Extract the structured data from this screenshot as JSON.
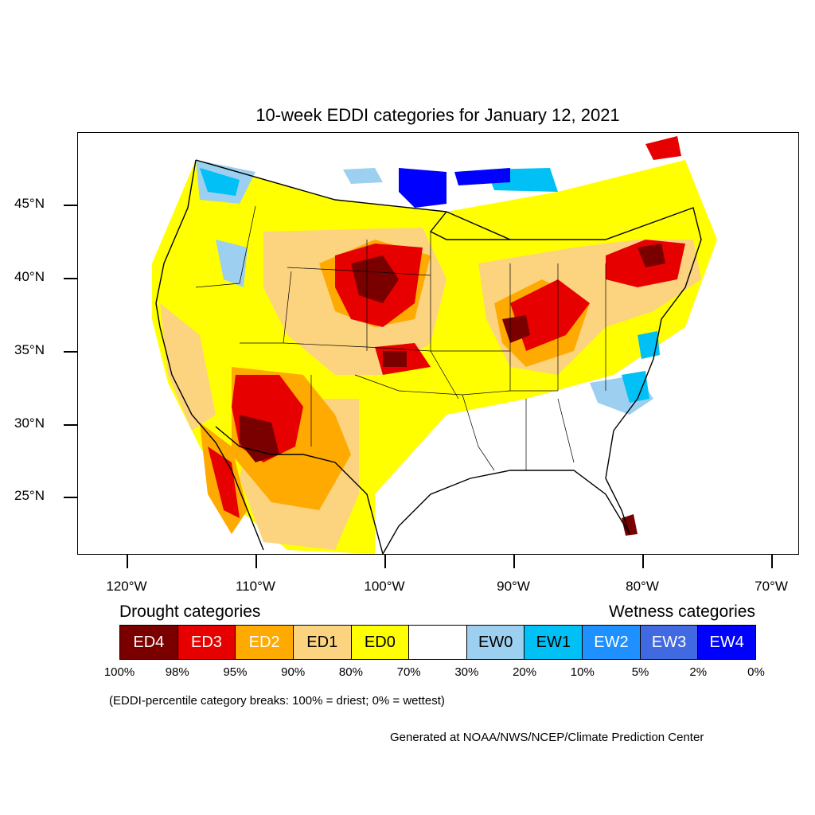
{
  "title": "10-week EDDI categories for January 12, 2021",
  "map": {
    "lat_labels": [
      "45°N",
      "40°N",
      "35°N",
      "30°N",
      "25°N"
    ],
    "lat_values": [
      45,
      40,
      35,
      30,
      25
    ],
    "lon_labels": [
      "120°W",
      "110°W",
      "100°W",
      "90°W",
      "80°W",
      "70°W"
    ],
    "lon_values": [
      -120,
      -110,
      -100,
      -90,
      -80,
      -70
    ],
    "regions": [
      {
        "category": "ED0",
        "area": "Western interior and Great Plains"
      },
      {
        "category": "ED1",
        "area": "Colorado Plateau and northern plains"
      },
      {
        "category": "ED2",
        "area": "Southwest and Texas panhandle"
      },
      {
        "category": "ED3",
        "area": "Arizona, Nebraska, Great Lakes, New York"
      },
      {
        "category": "ED4",
        "area": "Southern Arizona, South Dakota, Indiana, southern Florida"
      },
      {
        "category": "EW0",
        "area": "Pacific Northwest, Carolinas"
      },
      {
        "category": "EW1",
        "area": "Northern border, Virginia coast"
      },
      {
        "category": "EW4",
        "area": "Minnesota / Lake Superior border"
      }
    ]
  },
  "legend": {
    "drought_heading": "Drought categories",
    "wetness_heading": "Wetness categories",
    "categories": [
      {
        "label": "ED4",
        "color": "#7a0000",
        "text_color": "#ffffff"
      },
      {
        "label": "ED3",
        "color": "#e60000",
        "text_color": "#ffffff"
      },
      {
        "label": "ED2",
        "color": "#ffaa00",
        "text_color": "#ffffff"
      },
      {
        "label": "ED1",
        "color": "#fcd37f",
        "text_color": "#000000"
      },
      {
        "label": "ED0",
        "color": "#ffff00",
        "text_color": "#000000"
      },
      {
        "label": "",
        "color": "#ffffff",
        "text_color": "#000000"
      },
      {
        "label": "EW0",
        "color": "#9ccff0",
        "text_color": "#000000"
      },
      {
        "label": "EW1",
        "color": "#00c0f5",
        "text_color": "#000000"
      },
      {
        "label": "EW2",
        "color": "#1e90ff",
        "text_color": "#ffffff"
      },
      {
        "label": "EW3",
        "color": "#4169e1",
        "text_color": "#ffffff"
      },
      {
        "label": "EW4",
        "color": "#0000ff",
        "text_color": "#ffffff"
      }
    ],
    "percentiles": [
      "100%",
      "98%",
      "95%",
      "90%",
      "80%",
      "70%",
      "30%",
      "20%",
      "10%",
      "5%",
      "2%",
      "0%"
    ]
  },
  "note": "(EDDI-percentile category breaks: 100% = driest; 0% = wettest)",
  "credit": "Generated at NOAA/NWS/NCEP/Climate Prediction Center"
}
